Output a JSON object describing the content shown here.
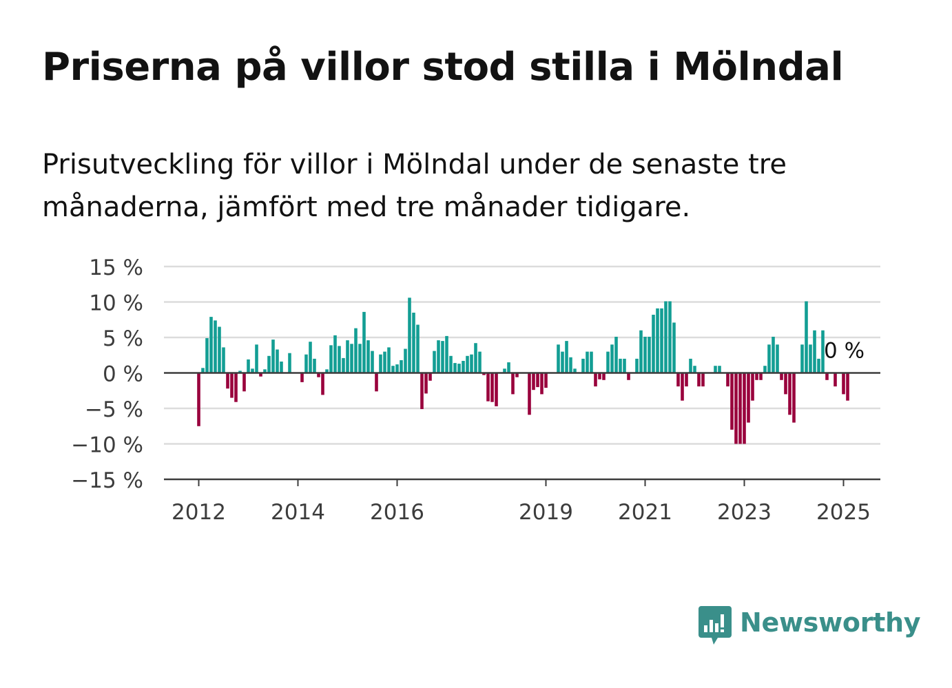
{
  "title": "Priserna på villor stod stilla i Mölndal",
  "subtitle": "Prisutveckling för villor i Mölndal under de senaste tre månaderna, jämfört med tre månader tidigare.",
  "brand": {
    "name": "Newsworthy",
    "color": "#3a8f8a"
  },
  "colors": {
    "positive": "#139e94",
    "negative": "#99003c",
    "grid": "#dcdcdc",
    "axis": "#3c3c3c",
    "text": "#121212",
    "axis_text": "#3c3c3c"
  },
  "chart_data": {
    "type": "bar",
    "title": "",
    "xlabel": "",
    "ylabel": "",
    "ylim": [
      -15,
      15
    ],
    "yticks": [
      15,
      10,
      5,
      0,
      -5,
      -10,
      -15
    ],
    "ytick_labels": [
      "15 %",
      "10 %",
      "5 %",
      "0 %",
      "−5 %",
      "−10 %",
      "−15 %"
    ],
    "xtick_years": [
      2012,
      2014,
      2016,
      2019,
      2021,
      2023,
      2025
    ],
    "xtick_labels": [
      "2012",
      "2014",
      "2016",
      "2019",
      "2021",
      "2023",
      "2025"
    ],
    "end_label": "0 %",
    "series": [
      {
        "values": [
          -7.5,
          0.7,
          4.9,
          7.9,
          7.4,
          6.5,
          3.6,
          -2.2,
          -3.5,
          -4.1,
          0.3,
          -2.6,
          1.9,
          0.6,
          4.0,
          -0.5,
          0.5,
          2.4,
          4.7,
          3.3,
          1.6,
          0,
          2.8,
          0,
          0,
          -1.3,
          2.6,
          4.4,
          2.0,
          -0.6,
          -3.1,
          0.5,
          3.9,
          5.3,
          3.8,
          2.1,
          4.6,
          4.1,
          6.3,
          4.1,
          8.6,
          4.6,
          3.1,
          -2.6,
          2.6,
          3.0,
          3.6,
          1.0,
          1.2,
          1.8,
          3.4,
          10.6,
          8.5,
          6.8,
          -5.1,
          -2.9,
          -1.1,
          3.1,
          4.6,
          4.5,
          5.2,
          2.4,
          1.4,
          1.3,
          1.7,
          2.4,
          2.6,
          4.2,
          3.0,
          -0.3,
          -4.0,
          -4.1,
          -4.7,
          0,
          0.6,
          1.5,
          -3.0,
          -0.6,
          0,
          0,
          -5.9,
          -2.4,
          -2.0,
          -3.0,
          -2.1,
          0,
          0,
          4.0,
          3.0,
          4.5,
          2.2,
          0.6,
          0,
          2.0,
          3.0,
          3.0,
          -1.9,
          -0.9,
          -1.0,
          3.0,
          4.0,
          5.1,
          2.0,
          2.0,
          -1.0,
          0,
          2.0,
          6.0,
          5.1,
          5.1,
          8.2,
          9.1,
          9.1,
          10.1,
          10.1,
          7.1,
          -1.9,
          -3.9,
          -1.9,
          2.0,
          1.0,
          -1.9,
          -1.9,
          0,
          0,
          1.0,
          1.0,
          0,
          -1.9,
          -8.0,
          -10.0,
          -10.0,
          -10.0,
          -7.0,
          -3.9,
          -1.0,
          -1.0,
          1.0,
          4.0,
          5.1,
          4.0,
          -1.0,
          -3.0,
          -5.9,
          -7.0,
          0,
          4.0,
          10.1,
          4.0,
          6.0,
          2.0,
          6.0,
          -1.0,
          0,
          -1.9,
          0,
          -3.0,
          -3.9,
          0
        ]
      }
    ],
    "x_start": "2012-01",
    "x_end": "2025-01",
    "frequency": "monthly",
    "grid": true,
    "legend": "none"
  }
}
